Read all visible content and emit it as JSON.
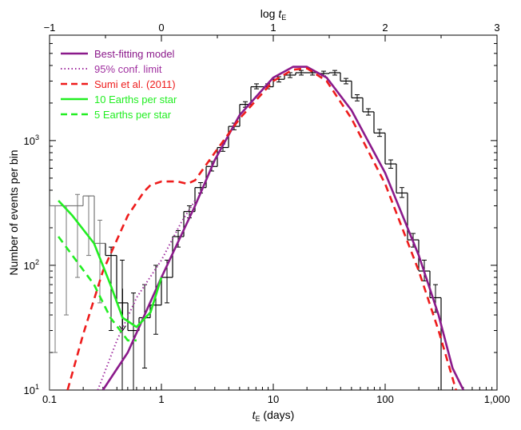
{
  "chart_data": {
    "type": "line",
    "x_scale": "log",
    "y_scale": "log",
    "xlim": [
      0.1,
      1000
    ],
    "ylim": [
      10,
      7000
    ],
    "xlabel": "t_E (days)",
    "xlabel_parts": [
      "t",
      "E",
      " (days)"
    ],
    "ylabel": "Number of events per bin",
    "top_xlabel_parts": [
      "log ",
      "t",
      "E"
    ],
    "x_ticks": [
      {
        "value": 0.1,
        "label": "0.1"
      },
      {
        "value": 1,
        "label": "1"
      },
      {
        "value": 10,
        "label": "10"
      },
      {
        "value": 100,
        "label": "100"
      },
      {
        "value": 1000,
        "label": "1,000"
      }
    ],
    "top_ticks": [
      {
        "value": -1,
        "label": "−1"
      },
      {
        "value": 0,
        "label": "0"
      },
      {
        "value": 1,
        "label": "1"
      },
      {
        "value": 2,
        "label": "2"
      },
      {
        "value": 3,
        "label": "3"
      }
    ],
    "y_ticks": [
      {
        "value": 10,
        "base": "10",
        "exp": "1"
      },
      {
        "value": 100,
        "base": "10",
        "exp": "2"
      },
      {
        "value": 1000,
        "base": "10",
        "exp": "3"
      }
    ],
    "legend_position": "top-left",
    "series": [
      {
        "name": "Best-fitting model",
        "color": "#8b1a8b",
        "style": "solid",
        "points": [
          [
            0.3,
            10
          ],
          [
            0.5,
            20
          ],
          [
            1,
            80
          ],
          [
            2,
            300
          ],
          [
            3,
            700
          ],
          [
            5,
            1600
          ],
          [
            10,
            3200
          ],
          [
            15,
            3900
          ],
          [
            20,
            3900
          ],
          [
            30,
            3200
          ],
          [
            50,
            1750
          ],
          [
            100,
            550
          ],
          [
            200,
            120
          ],
          [
            300,
            40
          ],
          [
            400,
            15
          ],
          [
            500,
            10
          ]
        ]
      },
      {
        "name": "95% conf. limit",
        "color": "#a030a0",
        "style": "dotted",
        "points": [
          [
            0.27,
            10
          ],
          [
            0.4,
            25
          ],
          [
            0.6,
            55
          ],
          [
            1,
            110
          ],
          [
            1.5,
            220
          ],
          [
            2,
            330
          ]
        ]
      },
      {
        "name": "Sumi et al. (2011)",
        "color": "#ee1c1c",
        "style": "dashed",
        "points": [
          [
            0.145,
            10
          ],
          [
            0.2,
            28
          ],
          [
            0.3,
            90
          ],
          [
            0.5,
            250
          ],
          [
            0.7,
            390
          ],
          [
            0.8,
            440
          ],
          [
            1,
            470
          ],
          [
            1.4,
            470
          ],
          [
            1.7,
            450
          ],
          [
            2,
            480
          ],
          [
            3,
            800
          ],
          [
            5,
            1500
          ],
          [
            10,
            3000
          ],
          [
            15,
            3700
          ],
          [
            20,
            3800
          ],
          [
            30,
            3000
          ],
          [
            50,
            1500
          ],
          [
            100,
            450
          ],
          [
            200,
            90
          ],
          [
            300,
            30
          ],
          [
            430,
            10
          ]
        ]
      },
      {
        "name": "10 Earths per star",
        "color": "#22ee22",
        "style": "solid",
        "points": [
          [
            0.12,
            330
          ],
          [
            0.16,
            250
          ],
          [
            0.25,
            150
          ],
          [
            0.35,
            70
          ],
          [
            0.45,
            38
          ],
          [
            0.6,
            32
          ],
          [
            0.8,
            42
          ],
          [
            1.0,
            80
          ]
        ]
      },
      {
        "name": "5 Earths per star",
        "color": "#22ee22",
        "style": "dashed",
        "points": [
          [
            0.12,
            170
          ],
          [
            0.16,
            120
          ],
          [
            0.25,
            70
          ],
          [
            0.35,
            38
          ],
          [
            0.5,
            25
          ],
          [
            0.6,
            25
          ]
        ]
      }
    ],
    "histogram": {
      "color": "#000000",
      "grey_color": "#777777",
      "edges": [
        0.1,
        0.1259,
        0.1585,
        0.1995,
        0.2512,
        0.3162,
        0.3981,
        0.5012,
        0.631,
        0.7943,
        1,
        1.259,
        1.585,
        1.995,
        2.512,
        3.162,
        3.981,
        5.012,
        6.31,
        7.943,
        10,
        12.59,
        15.85,
        19.95,
        25.12,
        31.62,
        39.81,
        50.12,
        63.1,
        79.43,
        100,
        125.9,
        158.5,
        199.5,
        251.2,
        316.2
      ],
      "values": [
        300,
        300,
        300,
        360,
        150,
        120,
        50,
        30,
        38,
        48,
        80,
        170,
        270,
        420,
        620,
        880,
        1300,
        1950,
        2700,
        2700,
        3100,
        3350,
        3500,
        3500,
        3450,
        3500,
        3000,
        2200,
        1700,
        1150,
        650,
        380,
        160,
        90,
        55
      ],
      "errors": [
        [
          20,
          300
        ],
        [
          40,
          300
        ],
        [
          80,
          370
        ],
        [
          120,
          360
        ],
        [
          50,
          230
        ],
        [
          30,
          140
        ],
        [
          10,
          110
        ],
        [
          10,
          60
        ],
        [
          15,
          70
        ],
        [
          28,
          100
        ],
        [
          50,
          110
        ],
        [
          140,
          190
        ],
        [
          240,
          300
        ],
        [
          380,
          460
        ],
        [
          570,
          680
        ],
        [
          820,
          940
        ],
        [
          1220,
          1380
        ],
        [
          1850,
          2050
        ],
        [
          2600,
          2850
        ],
        [
          2600,
          2850
        ],
        [
          2950,
          3250
        ],
        [
          3200,
          3500
        ],
        [
          3350,
          3650
        ],
        [
          3350,
          3650
        ],
        [
          3300,
          3600
        ],
        [
          3350,
          3650
        ],
        [
          2850,
          3150
        ],
        [
          2080,
          2330
        ],
        [
          1600,
          1800
        ],
        [
          1080,
          1230
        ],
        [
          600,
          700
        ],
        [
          350,
          420
        ],
        [
          140,
          180
        ],
        [
          75,
          110
        ],
        [
          42,
          70
        ]
      ],
      "grey_bins": 5
    },
    "upper_limit_arrow": {
      "x": 0.45,
      "y_from": 65,
      "y_to": 30
    },
    "legend_order": [
      "Best-fitting model",
      "95% conf. limit",
      "Sumi et al. (2011)",
      "10 Earths per star",
      "5 Earths per star"
    ]
  }
}
